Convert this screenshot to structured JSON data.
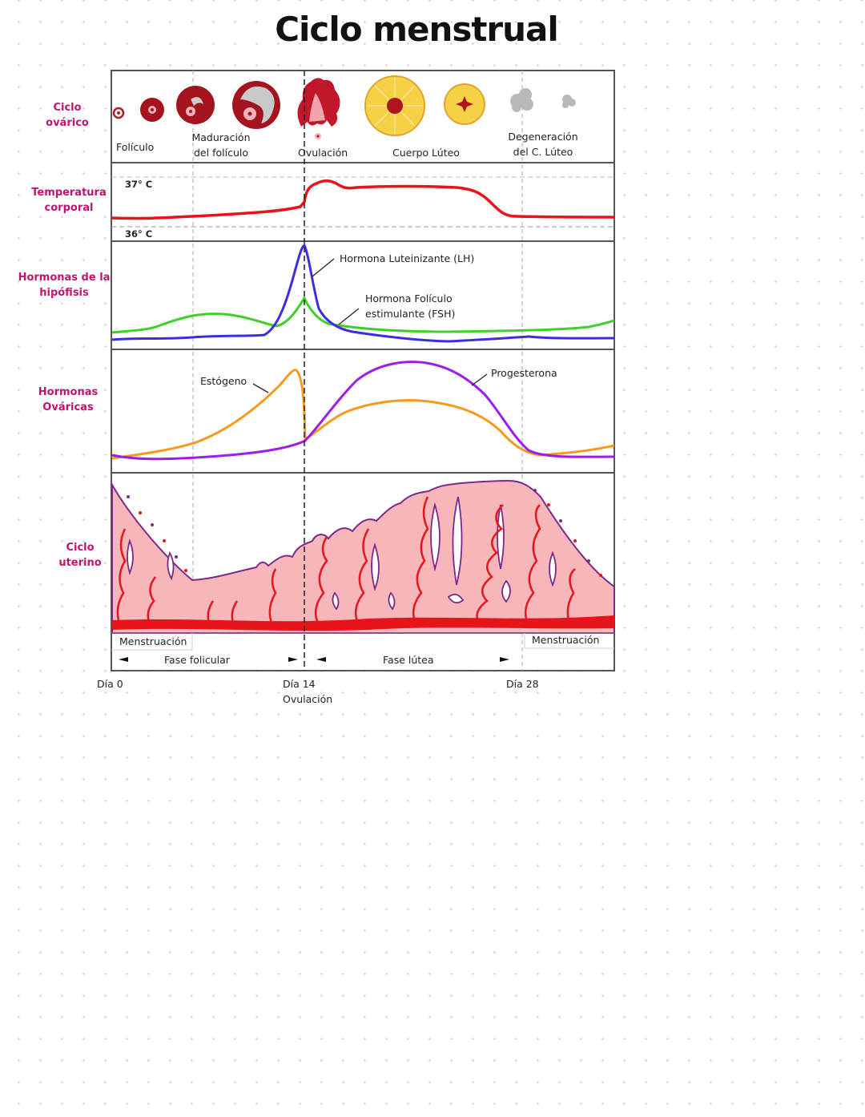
{
  "title": "Ciclo menstrual",
  "row_labels": {
    "ovarian_cycle": [
      "Ciclo",
      "ovárico"
    ],
    "temperature": [
      "Temperatura",
      "corporal"
    ],
    "pituitary": [
      "Hormonas de la",
      "hipófisis"
    ],
    "ovarian_hormones": [
      "Hormonas",
      "Ováricas"
    ],
    "uterine": [
      "Ciclo",
      "uterino"
    ]
  },
  "ovarian_stages": {
    "follicle": "Folículo",
    "maturation": [
      "Maduración",
      "del folículo"
    ],
    "ovulation": "Ovulación",
    "corpus_luteum": "Cuerpo Lúteo",
    "degeneration": [
      "Degeneración",
      "del C. Lúteo"
    ]
  },
  "temperature": {
    "high": "37° C",
    "low": "36° C"
  },
  "pituitary_hormones": {
    "lh": "Hormona Luteinizante (LH)",
    "fsh": [
      "Hormona Folículo",
      "estimulante (FSH)"
    ]
  },
  "ovarian_hormones": {
    "estrogen": "Estógeno",
    "progesterone": "Progesterona"
  },
  "phases": {
    "menstruation_start": "Menstruación",
    "menstruation_end": "Menstruación",
    "follicular": "Fase folicular",
    "luteal": "Fase lútea"
  },
  "days": {
    "day0": "Día 0",
    "day14": "Día 14",
    "day14_note": "Ovulación",
    "day28": "Día 28"
  },
  "colors": {
    "label": "#c0136e",
    "temperature": "#e8141c",
    "lh": "#3b2ee0",
    "fsh": "#3fcf2a",
    "estrogen": "#f59a1b",
    "progesterone": "#9b1fe8",
    "endometrium": "#f7b7ba"
  }
}
